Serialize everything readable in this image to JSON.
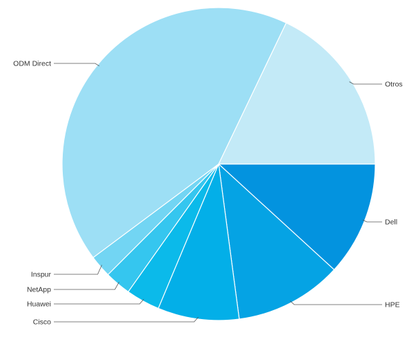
{
  "chart_data": {
    "type": "pie",
    "title": "",
    "legend": "none",
    "slices": [
      {
        "label": "Dell",
        "value": 11.8,
        "color": "#0393df"
      },
      {
        "label": "HPE",
        "value": 11.1,
        "color": "#05a3e4"
      },
      {
        "label": "Cisco",
        "value": 8.4,
        "color": "#03afe8"
      },
      {
        "label": "Huawei",
        "value": 3.5,
        "color": "#0bbaea"
      },
      {
        "label": "NetApp",
        "value": 2.7,
        "color": "#35c6ef"
      },
      {
        "label": "Inspur",
        "value": 2.3,
        "color": "#72d5f3"
      },
      {
        "label": "ODM Direct",
        "value": 42.3,
        "color": "#9ddff5"
      },
      {
        "label": "Otros",
        "value": 17.9,
        "color": "#c3eaf7"
      }
    ]
  }
}
